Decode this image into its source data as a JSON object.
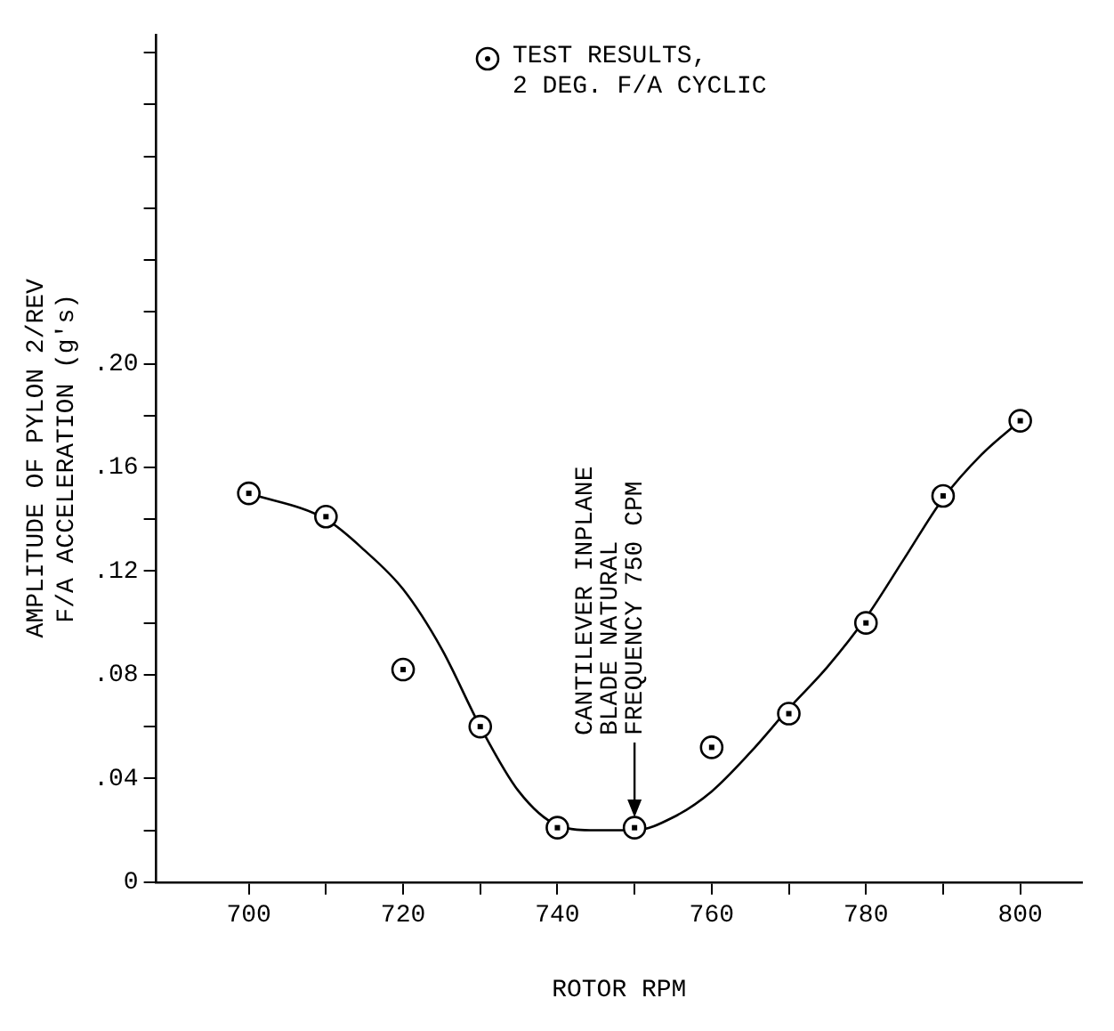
{
  "chart_data": {
    "type": "scatter",
    "xlabel": "ROTOR RPM",
    "ylabel": "AMPLITUDE OF PYLON 2/REV\nF/A ACCELERATION (g's)",
    "xlim": [
      688,
      808
    ],
    "xticks": [
      {
        "value": 700,
        "label": "700"
      },
      {
        "value": 710,
        "label": null
      },
      {
        "value": 720,
        "label": "720"
      },
      {
        "value": 730,
        "label": null
      },
      {
        "value": 740,
        "label": "740"
      },
      {
        "value": 750,
        "label": null
      },
      {
        "value": 760,
        "label": "760"
      },
      {
        "value": 770,
        "label": null
      },
      {
        "value": 780,
        "label": "780"
      },
      {
        "value": 790,
        "label": null
      },
      {
        "value": 800,
        "label": "800"
      }
    ],
    "ylim": [
      0,
      0.327
    ],
    "yticks": [
      0,
      {
        "value": 0.02,
        "label": null
      },
      {
        "value": 0.04,
        "label": ".04"
      },
      {
        "value": 0.06,
        "label": null
      },
      {
        "value": 0.08,
        "label": ".08"
      },
      {
        "value": 0.1,
        "label": null
      },
      {
        "value": 0.12,
        "label": ".12"
      },
      {
        "value": 0.14,
        "label": null
      },
      {
        "value": 0.16,
        "label": ".16"
      },
      {
        "value": 0.18,
        "label": null
      },
      {
        "value": 0.2,
        "label": ".20"
      },
      {
        "value": 0.22,
        "label": null
      },
      {
        "value": 0.24,
        "label": null
      },
      {
        "value": 0.26,
        "label": null
      },
      {
        "value": 0.28,
        "label": null
      },
      {
        "value": 0.3,
        "label": null
      },
      {
        "value": 0.32,
        "label": null
      }
    ],
    "grid": false,
    "legend": "top",
    "series": [
      {
        "name": "TEST RESULTS,\n2 DEG. F/A CYCLIC",
        "type": "scatter",
        "marker": "circle",
        "color": "#000000",
        "x": [
          700,
          710,
          720,
          730,
          740,
          750,
          760,
          770,
          780,
          790,
          800
        ],
        "values": [
          0.15,
          0.141,
          0.082,
          0.06,
          0.021,
          0.021,
          0.052,
          0.065,
          0.1,
          0.149,
          0.178
        ]
      },
      {
        "type": "line",
        "marker": "none",
        "color": "#000000",
        "line_style": "solid",
        "x": [
          700,
          710,
          715,
          720,
          725,
          730,
          735,
          740,
          745,
          750,
          755,
          760,
          765,
          770,
          775,
          780,
          785,
          790,
          795,
          800
        ],
        "values": [
          0.15,
          0.14,
          0.128,
          0.113,
          0.09,
          0.06,
          0.035,
          0.022,
          0.02,
          0.02,
          0.025,
          0.035,
          0.05,
          0.067,
          0.083,
          0.102,
          0.125,
          0.148,
          0.165,
          0.178
        ]
      }
    ],
    "annotations": [
      {
        "text": "CANTILEVER INPLANE\nBLADE NATURAL\nFREQUENCY 750 CPM",
        "x": 750,
        "y": 0.025
      }
    ]
  }
}
